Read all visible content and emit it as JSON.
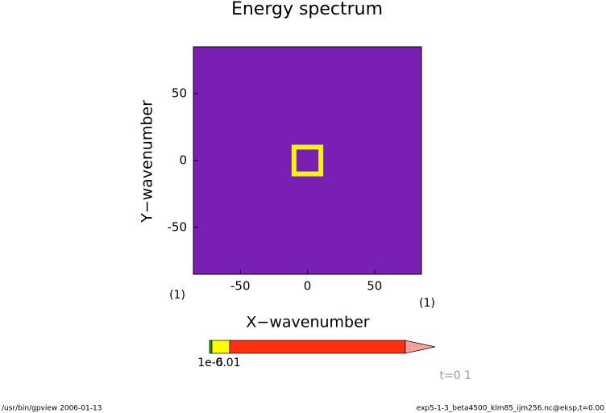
{
  "chart_data": {
    "type": "heatmap",
    "title": "Energy spectrum",
    "xlabel": "X−wavenumber",
    "ylabel": "Y−wavenumber",
    "xlim": [
      -85,
      85
    ],
    "ylim": [
      -85,
      85
    ],
    "xticks": [
      -50,
      0,
      50
    ],
    "yticks": [
      -50,
      0,
      50
    ],
    "background_color": "#7a1fb4",
    "ring": {
      "xlim": [
        -10,
        10
      ],
      "ylim": [
        -10,
        10
      ],
      "color": "#f4f414"
    },
    "x_unit": "(1)",
    "y_unit": "(1)",
    "colorbar": {
      "colors": [
        "#1f9f1f",
        "#ffff00",
        "#ff3010",
        "#ff9f9f"
      ],
      "labels": [
        "1e-6",
        "0.01"
      ]
    },
    "time_label": "t=0 1",
    "footer_left": "/usr/bin/gpview  2006-01-13",
    "footer_right": "exp5-1-3_beta4500_klm85_ijm256.nc@eksp,t=0.00"
  }
}
